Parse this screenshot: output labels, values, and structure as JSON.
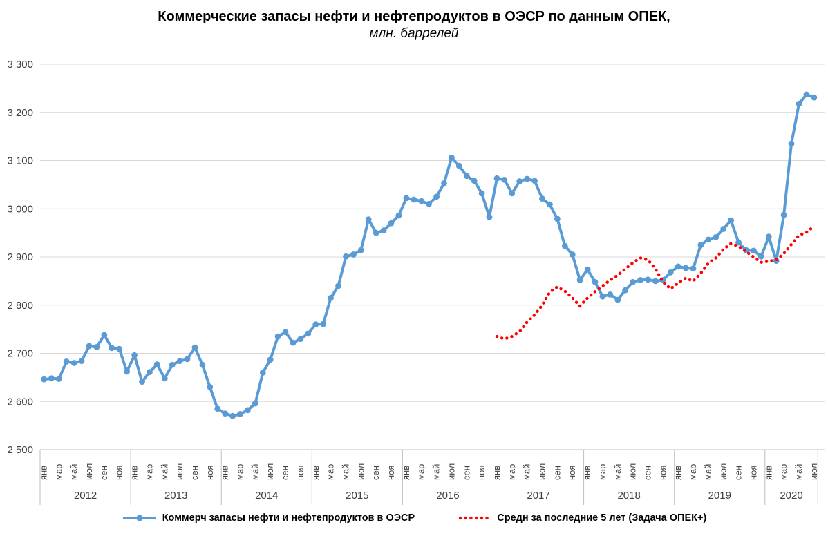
{
  "header": {
    "title": "Коммерческие запасы нефти и нефтепродуктов в ОЭСР по данным ОПЕК,",
    "subtitle": "млн. баррелей"
  },
  "legend": {
    "oecd_label": "Коммерч запасы нефти и нефтепродуктов в ОЭСР",
    "avg_label": "Средн за последние 5 лет (Задача ОПЕК+)"
  },
  "chart_data": {
    "type": "line",
    "title": "Коммерческие запасы нефти и нефтепродуктов в ОЭСР по данным ОПЕК,",
    "subtitle": "млн. баррелей",
    "ylim": [
      2500,
      3300
    ],
    "grid": true,
    "legend_position": "bottom",
    "colors": {
      "oecd_series": "#5B9BD5",
      "avg_series": "#FF0000",
      "gridline": "#D9D9D9",
      "axis": "#BFBFBF",
      "tick_text": "#404040"
    },
    "y_ticks": [
      {
        "value": 2500,
        "label": "2 500"
      },
      {
        "value": 2600,
        "label": "2 600"
      },
      {
        "value": 2700,
        "label": "2 700"
      },
      {
        "value": 2800,
        "label": "2 800"
      },
      {
        "value": 2900,
        "label": "2 900"
      },
      {
        "value": 3000,
        "label": "3 000"
      },
      {
        "value": 3100,
        "label": "3 100"
      },
      {
        "value": 3200,
        "label": "3 200"
      },
      {
        "value": 3300,
        "label": "3 300"
      }
    ],
    "x_axis": {
      "month_labels": [
        "янв",
        "мар",
        "май",
        "июл",
        "сен",
        "ноя"
      ],
      "years": [
        {
          "label": "2012",
          "months": 12
        },
        {
          "label": "2013",
          "months": 12
        },
        {
          "label": "2014",
          "months": 12
        },
        {
          "label": "2015",
          "months": 12
        },
        {
          "label": "2016",
          "months": 12
        },
        {
          "label": "2017",
          "months": 12
        },
        {
          "label": "2018",
          "months": 12
        },
        {
          "label": "2019",
          "months": 12
        },
        {
          "label": "2020",
          "months": 7
        }
      ]
    },
    "series": [
      {
        "name": "Коммерч запасы нефти и нефтепродуктов в ОЭСР",
        "color": "#5B9BD5",
        "style": "solid-with-markers",
        "start_index": 0,
        "values": [
          2646,
          2648,
          2647,
          2683,
          2680,
          2684,
          2715,
          2713,
          2738,
          2711,
          2709,
          2662,
          2696,
          2641,
          2661,
          2677,
          2648,
          2676,
          2684,
          2688,
          2712,
          2676,
          2630,
          2585,
          2575,
          2570,
          2574,
          2582,
          2596,
          2660,
          2687,
          2735,
          2744,
          2722,
          2730,
          2741,
          2760,
          2761,
          2815,
          2840,
          2901,
          2905,
          2914,
          2978,
          2950,
          2955,
          2970,
          2986,
          3022,
          3019,
          3016,
          3010,
          3025,
          3053,
          3106,
          3089,
          3068,
          3058,
          3032,
          2983,
          3063,
          3060,
          3032,
          3057,
          3062,
          3058,
          3021,
          3009,
          2979,
          2923,
          2905,
          2852,
          2874,
          2848,
          2818,
          2822,
          2811,
          2831,
          2848,
          2852,
          2853,
          2850,
          2852,
          2868,
          2880,
          2877,
          2876,
          2925,
          2936,
          2941,
          2958,
          2976,
          2930,
          2914,
          2913,
          2901,
          2942,
          2892,
          2987,
          3135,
          3218,
          3237,
          3231
        ]
      },
      {
        "name": "Средн за последние 5 лет (Задача ОПЕК+)",
        "color": "#FF0000",
        "style": "dotted",
        "start_index": 60,
        "values": [
          2735,
          2730,
          2735,
          2745,
          2765,
          2780,
          2800,
          2827,
          2838,
          2829,
          2815,
          2798,
          2815,
          2828,
          2840,
          2852,
          2862,
          2875,
          2888,
          2898,
          2894,
          2875,
          2848,
          2834,
          2846,
          2856,
          2850,
          2866,
          2887,
          2898,
          2916,
          2928,
          2922,
          2911,
          2900,
          2889,
          2891,
          2894,
          2907,
          2926,
          2945,
          2951,
          2964
        ]
      }
    ]
  }
}
